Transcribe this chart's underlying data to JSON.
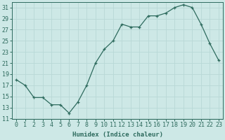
{
  "x": [
    0,
    1,
    2,
    3,
    4,
    5,
    6,
    7,
    8,
    9,
    10,
    11,
    12,
    13,
    14,
    15,
    16,
    17,
    18,
    19,
    20,
    21,
    22,
    23
  ],
  "y": [
    18.0,
    17.0,
    14.8,
    14.8,
    13.5,
    13.5,
    12.0,
    14.0,
    17.0,
    21.0,
    23.5,
    25.0,
    28.0,
    27.5,
    27.5,
    29.5,
    29.5,
    30.0,
    31.0,
    31.5,
    31.0,
    28.0,
    24.5,
    21.5
  ],
  "line_color": "#2e6b5e",
  "bg_color": "#cde8e6",
  "grid_color": "#b8d8d6",
  "xlabel": "Humidex (Indice chaleur)",
  "ylim": [
    11,
    32
  ],
  "xlim": [
    -0.5,
    23.5
  ],
  "yticks": [
    11,
    13,
    15,
    17,
    19,
    21,
    23,
    25,
    27,
    29,
    31
  ],
  "xticks": [
    0,
    1,
    2,
    3,
    4,
    5,
    6,
    7,
    8,
    9,
    10,
    11,
    12,
    13,
    14,
    15,
    16,
    17,
    18,
    19,
    20,
    21,
    22,
    23
  ],
  "xtick_labels": [
    "0",
    "1",
    "2",
    "3",
    "4",
    "5",
    "6",
    "7",
    "8",
    "9",
    "10",
    "11",
    "12",
    "13",
    "14",
    "15",
    "16",
    "17",
    "18",
    "19",
    "20",
    "21",
    "22",
    "23"
  ],
  "marker": "+",
  "tick_fontsize": 6.0,
  "xlabel_fontsize": 6.5
}
